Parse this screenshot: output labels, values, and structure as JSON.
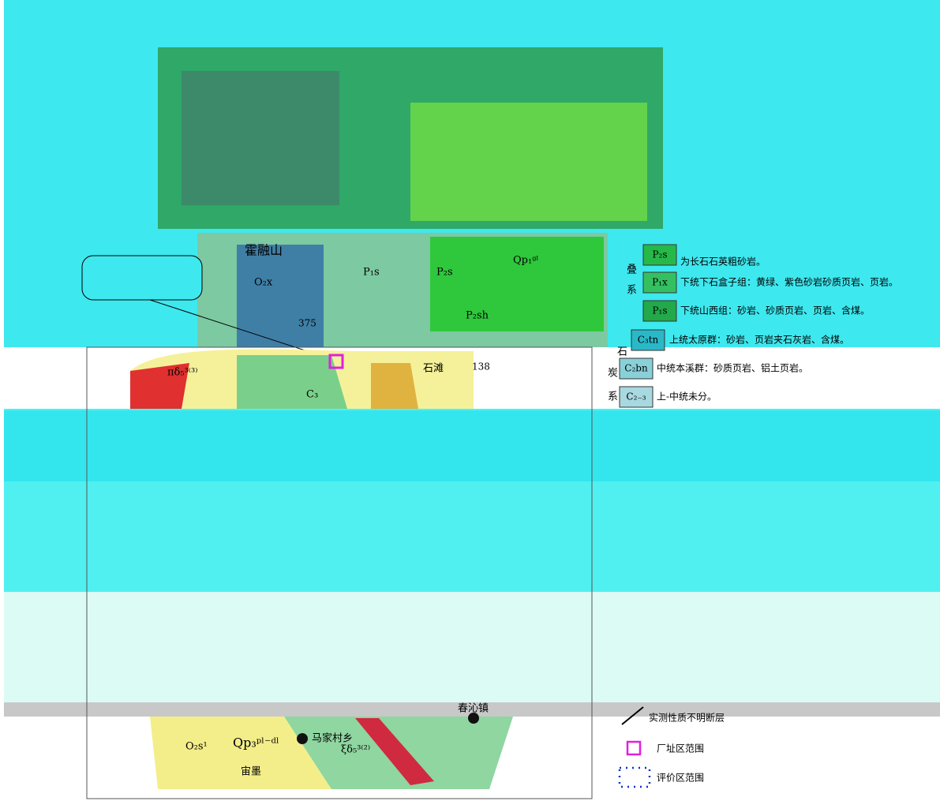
{
  "map": {
    "labels": [
      "霍融山",
      "O₂x",
      "P₁s",
      "P₂s",
      "Qp₁ᵍˡ",
      "P₂sh",
      "石滩",
      "138",
      "375",
      "C₃",
      "马家村乡",
      "Qp₃ᵖˡ⁻ᵈˡ",
      "O₂s¹",
      "宙墨",
      "春沁镇",
      "ξδ₅³⁽²⁾",
      "πδ₅³⁽³⁾"
    ]
  },
  "legend": {
    "permian": {
      "system": [
        "叠",
        "系"
      ],
      "items": [
        {
          "code": "P₂s",
          "text": "为长石石英粗砂岩。"
        },
        {
          "code": "P₁x",
          "text": "下统下石盒子组：黄绿、紫色砂岩砂质页岩、页岩。"
        },
        {
          "code": "P₁s",
          "text": "下统山西组：砂岩、砂质页岩、页岩、含煤。"
        }
      ]
    },
    "carboniferous": {
      "system": [
        "石",
        "炭",
        "系"
      ],
      "items": [
        {
          "code": "C₃tn",
          "text": "上统太原群：砂岩、页岩夹石灰岩、含煤。"
        },
        {
          "code": "C₂bn",
          "text": "中统本溪群：砂质页岩、铝土页岩。"
        },
        {
          "code": "C₂₋₃",
          "text": "上-中统未分。"
        }
      ]
    },
    "symbols": [
      "实测性质不明断层",
      "厂址区范围",
      "评价区范围"
    ]
  }
}
